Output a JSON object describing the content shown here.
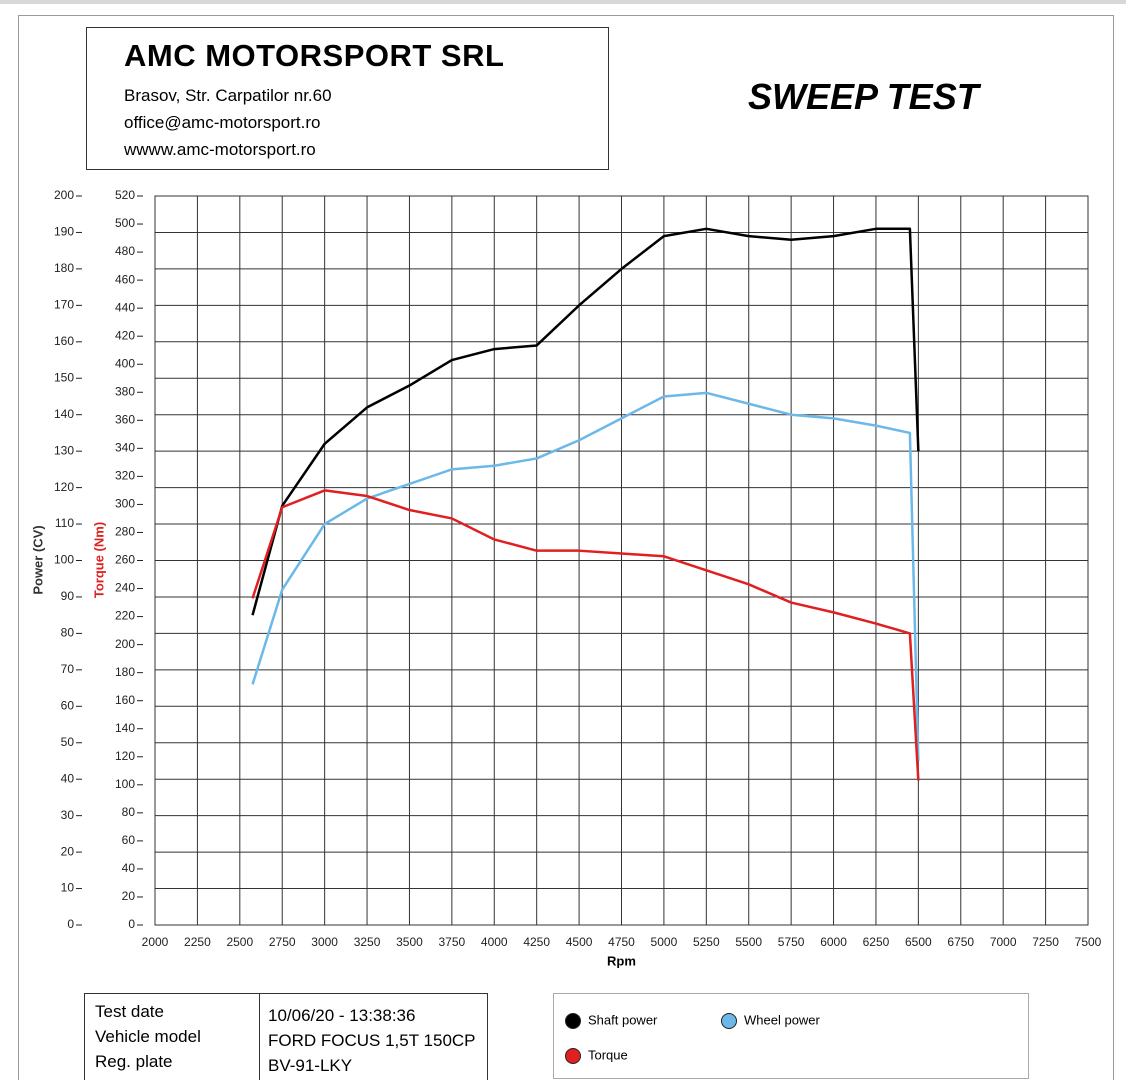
{
  "header": {
    "company": "AMC MOTORSPORT SRL",
    "address": "Brasov, Str. Carpatilor nr.60",
    "email": "office@amc-motorsport.ro",
    "website": "wwww.amc-motorsport.ro",
    "report_title": "SWEEP TEST"
  },
  "info": {
    "rows": [
      [
        "Test date",
        "10/06/20 - 13:38:36"
      ],
      [
        "Vehicle model",
        "FORD FOCUS 1,5T 150CP"
      ],
      [
        "Reg. plate",
        "BV-91-LKY"
      ]
    ]
  },
  "chart_data": {
    "type": "line",
    "x_label": "Rpm",
    "y_label": "Power (CV)",
    "y2_label": "Torque (Nm)",
    "x": [
      2575,
      2750,
      3000,
      3250,
      3500,
      3750,
      4000,
      4250,
      4500,
      4750,
      5000,
      5250,
      5500,
      5750,
      6000,
      6250,
      6450,
      6500
    ],
    "series": [
      {
        "name": "Shaft power",
        "color": "#000000",
        "values": [
          85,
          115,
          132,
          142,
          148,
          155,
          158,
          159,
          170,
          180,
          189,
          191,
          189,
          188,
          189,
          191,
          191,
          130
        ]
      },
      {
        "name": "Wheel power",
        "color": "#6cb8e8",
        "values": [
          66,
          92,
          110,
          117,
          121,
          125,
          126,
          128,
          133,
          139,
          145,
          146,
          143,
          140,
          139,
          137,
          135,
          45
        ]
      },
      {
        "name": "Torque",
        "color": "#e02020",
        "axis": "y2",
        "values": [
          233,
          298,
          310,
          306,
          296,
          290,
          275,
          267,
          267,
          265,
          263,
          253,
          243,
          230,
          223,
          215,
          208,
          103
        ]
      }
    ],
    "xlim": [
      2000,
      7500
    ],
    "xticks": [
      2000,
      2250,
      2500,
      2750,
      3000,
      3250,
      3500,
      3750,
      4000,
      4250,
      4500,
      4750,
      5000,
      5250,
      5500,
      5750,
      6000,
      6250,
      6500,
      6750,
      7000,
      7250,
      7500
    ],
    "ylim": [
      0,
      200
    ],
    "yticks": [
      0,
      10,
      20,
      30,
      40,
      50,
      60,
      70,
      80,
      90,
      100,
      110,
      120,
      130,
      140,
      150,
      160,
      170,
      180,
      190,
      200
    ],
    "y2lim": [
      0,
      520
    ],
    "y2ticks": [
      0,
      20,
      40,
      60,
      80,
      100,
      120,
      140,
      160,
      180,
      200,
      220,
      240,
      260,
      280,
      300,
      320,
      340,
      360,
      380,
      400,
      420,
      440,
      460,
      480,
      500,
      520
    ],
    "grid": true,
    "y_label_color": "#333333",
    "y2_label_color": "#e02020"
  }
}
